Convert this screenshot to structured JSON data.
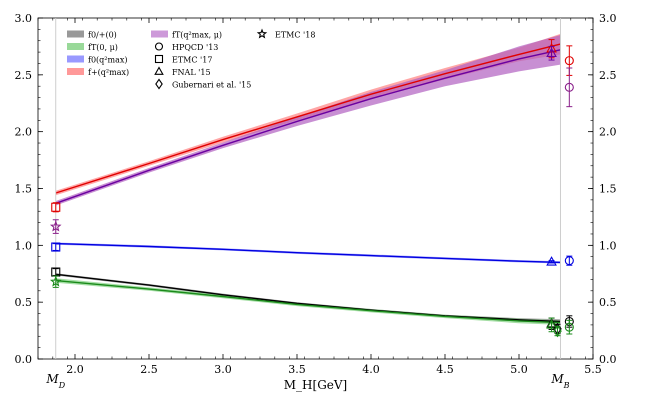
{
  "chart_data": {
    "type": "line",
    "xlabel": "M_H[GeV]",
    "ylabel": "",
    "xlim": [
      1.75,
      5.5
    ],
    "ylim": [
      0.0,
      3.0
    ],
    "xticks": [
      2.0,
      2.5,
      3.0,
      3.5,
      4.0,
      4.5,
      5.0,
      5.5
    ],
    "xtick_labels": [
      "2.0",
      "2.5",
      "3.0",
      "3.5",
      "4.0",
      "4.5",
      "5.0",
      "5.5"
    ],
    "yticks": [
      0.0,
      0.5,
      1.0,
      1.5,
      2.0,
      2.5,
      3.0
    ],
    "ytick_labels": [
      "0.0",
      "0.5",
      "1.0",
      "1.5",
      "2.0",
      "2.5",
      "3.0"
    ],
    "grid": false,
    "legend_placement": "top-left",
    "vertical_markers": [
      {
        "label": "M_D",
        "x": 1.87
      },
      {
        "label": "M_B",
        "x": 5.28
      }
    ],
    "series": [
      {
        "name": "f0/+(0)",
        "color": "#000000",
        "band_color": "#808080",
        "x": [
          1.87,
          2.5,
          3.0,
          3.5,
          4.0,
          4.5,
          5.0,
          5.28
        ],
        "y": [
          0.745,
          0.65,
          0.565,
          0.49,
          0.43,
          0.38,
          0.345,
          0.33
        ],
        "lower": [
          0.735,
          0.64,
          0.555,
          0.48,
          0.42,
          0.37,
          0.33,
          0.31
        ],
        "upper": [
          0.755,
          0.66,
          0.575,
          0.5,
          0.44,
          0.39,
          0.36,
          0.35
        ]
      },
      {
        "name": "fT(0, μ)",
        "color": "#1a8a1a",
        "band_color": "#7fd07f",
        "x": [
          1.87,
          2.5,
          3.0,
          3.5,
          4.0,
          4.5,
          5.0,
          5.28
        ],
        "y": [
          0.69,
          0.615,
          0.55,
          0.48,
          0.425,
          0.375,
          0.335,
          0.32
        ],
        "lower": [
          0.67,
          0.6,
          0.535,
          0.465,
          0.41,
          0.36,
          0.315,
          0.3
        ],
        "upper": [
          0.71,
          0.63,
          0.565,
          0.495,
          0.44,
          0.39,
          0.355,
          0.34
        ]
      },
      {
        "name": "f0(q²max)",
        "color": "#0000e0",
        "band_color": "#8080ff",
        "x": [
          1.87,
          2.5,
          3.0,
          3.5,
          4.0,
          4.5,
          5.0,
          5.28
        ],
        "y": [
          1.015,
          0.99,
          0.965,
          0.935,
          0.91,
          0.885,
          0.86,
          0.85
        ],
        "lower": [
          1.005,
          0.98,
          0.955,
          0.925,
          0.9,
          0.875,
          0.85,
          0.84
        ],
        "upper": [
          1.025,
          1.0,
          0.975,
          0.945,
          0.92,
          0.895,
          0.87,
          0.86
        ]
      },
      {
        "name": "f+(q²max)",
        "color": "#e00000",
        "band_color": "#ff8080",
        "x": [
          1.87,
          2.5,
          3.0,
          3.5,
          4.0,
          4.5,
          5.0,
          5.28
        ],
        "y": [
          1.46,
          1.72,
          1.93,
          2.13,
          2.33,
          2.51,
          2.68,
          2.77
        ],
        "lower": [
          1.44,
          1.7,
          1.905,
          2.1,
          2.29,
          2.46,
          2.62,
          2.68
        ],
        "upper": [
          1.48,
          1.74,
          1.955,
          2.16,
          2.37,
          2.56,
          2.74,
          2.86
        ]
      },
      {
        "name": "fT(q²max, μ)",
        "color": "#6a00a0",
        "band_color": "#b060c0",
        "x": [
          1.87,
          2.5,
          3.0,
          3.5,
          4.0,
          4.5,
          5.0,
          5.28
        ],
        "y": [
          1.37,
          1.66,
          1.88,
          2.09,
          2.29,
          2.47,
          2.64,
          2.72
        ],
        "lower": [
          1.35,
          1.64,
          1.855,
          2.05,
          2.23,
          2.4,
          2.53,
          2.59
        ],
        "upper": [
          1.39,
          1.68,
          1.905,
          2.13,
          2.35,
          2.54,
          2.75,
          2.85
        ]
      }
    ],
    "data_points": [
      {
        "group": "ETMC '17",
        "marker": "square",
        "color": "#e00000",
        "x": 1.87,
        "y": 1.335,
        "err": 0.04
      },
      {
        "group": "ETMC '17",
        "marker": "square",
        "color": "#0000e0",
        "x": 1.87,
        "y": 0.985,
        "err": 0.03
      },
      {
        "group": "ETMC '17",
        "marker": "square",
        "color": "#000000",
        "x": 1.87,
        "y": 0.765,
        "err": 0.03
      },
      {
        "group": "ETMC '18",
        "marker": "star",
        "color": "#8a208a",
        "x": 1.87,
        "y": 1.165,
        "err": 0.06
      },
      {
        "group": "ETMC '18",
        "marker": "star",
        "color": "#1a8a1a",
        "x": 1.87,
        "y": 0.68,
        "err": 0.05
      },
      {
        "group": "FNAL '15",
        "marker": "triangle",
        "color": "#e00000",
        "x": 5.22,
        "y": 2.73,
        "err": 0.08
      },
      {
        "group": "FNAL '15",
        "marker": "triangle",
        "color": "#6a00a0",
        "x": 5.22,
        "y": 2.69,
        "err": 0.06
      },
      {
        "group": "FNAL '15",
        "marker": "triangle",
        "color": "#0000e0",
        "x": 5.22,
        "y": 0.855,
        "err": 0.01
      },
      {
        "group": "FNAL '15",
        "marker": "triangle",
        "color": "#000000",
        "x": 5.22,
        "y": 0.31,
        "err": 0.05
      },
      {
        "group": "FNAL '15",
        "marker": "triangle",
        "color": "#1a8a1a",
        "x": 5.22,
        "y": 0.3,
        "err": 0.06
      },
      {
        "group": "Gubernari et al. '15",
        "marker": "diamond",
        "color": "#000000",
        "x": 5.26,
        "y": 0.265,
        "err": 0.04
      },
      {
        "group": "Gubernari et al. '15",
        "marker": "diamond",
        "color": "#1a8a1a",
        "x": 5.26,
        "y": 0.245,
        "err": 0.04
      },
      {
        "group": "HPQCD '13",
        "marker": "circle",
        "color": "#e00000",
        "x": 5.34,
        "y": 2.625,
        "err": 0.13
      },
      {
        "group": "HPQCD '13",
        "marker": "circle",
        "color": "#8a208a",
        "x": 5.34,
        "y": 2.39,
        "err": 0.17
      },
      {
        "group": "HPQCD '13",
        "marker": "circle",
        "color": "#0000e0",
        "x": 5.34,
        "y": 0.865,
        "err": 0.04
      },
      {
        "group": "HPQCD '13",
        "marker": "circle",
        "color": "#000000",
        "x": 5.34,
        "y": 0.33,
        "err": 0.05
      },
      {
        "group": "HPQCD '13",
        "marker": "circle",
        "color": "#1a8a1a",
        "x": 5.34,
        "y": 0.28,
        "err": 0.06
      }
    ],
    "legend": {
      "bands": [
        {
          "label": "f0/+(0)",
          "color": "#808080"
        },
        {
          "label": "fT(0, μ)",
          "color": "#7fd07f"
        },
        {
          "label": "f0(q²max)",
          "color": "#8080ff"
        },
        {
          "label": "f+(q²max)",
          "color": "#ff8080"
        },
        {
          "label": "fT(q²max, μ)",
          "color": "#c080d0"
        }
      ],
      "markers": [
        {
          "label": "ETMC '18",
          "marker": "star"
        },
        {
          "label": "HPQCD '13",
          "marker": "circle"
        },
        {
          "label": "ETMC '17",
          "marker": "square"
        },
        {
          "label": "FNAL '15",
          "marker": "triangle"
        },
        {
          "label": "Gubernari et al. '15",
          "marker": "diamond"
        }
      ]
    }
  }
}
